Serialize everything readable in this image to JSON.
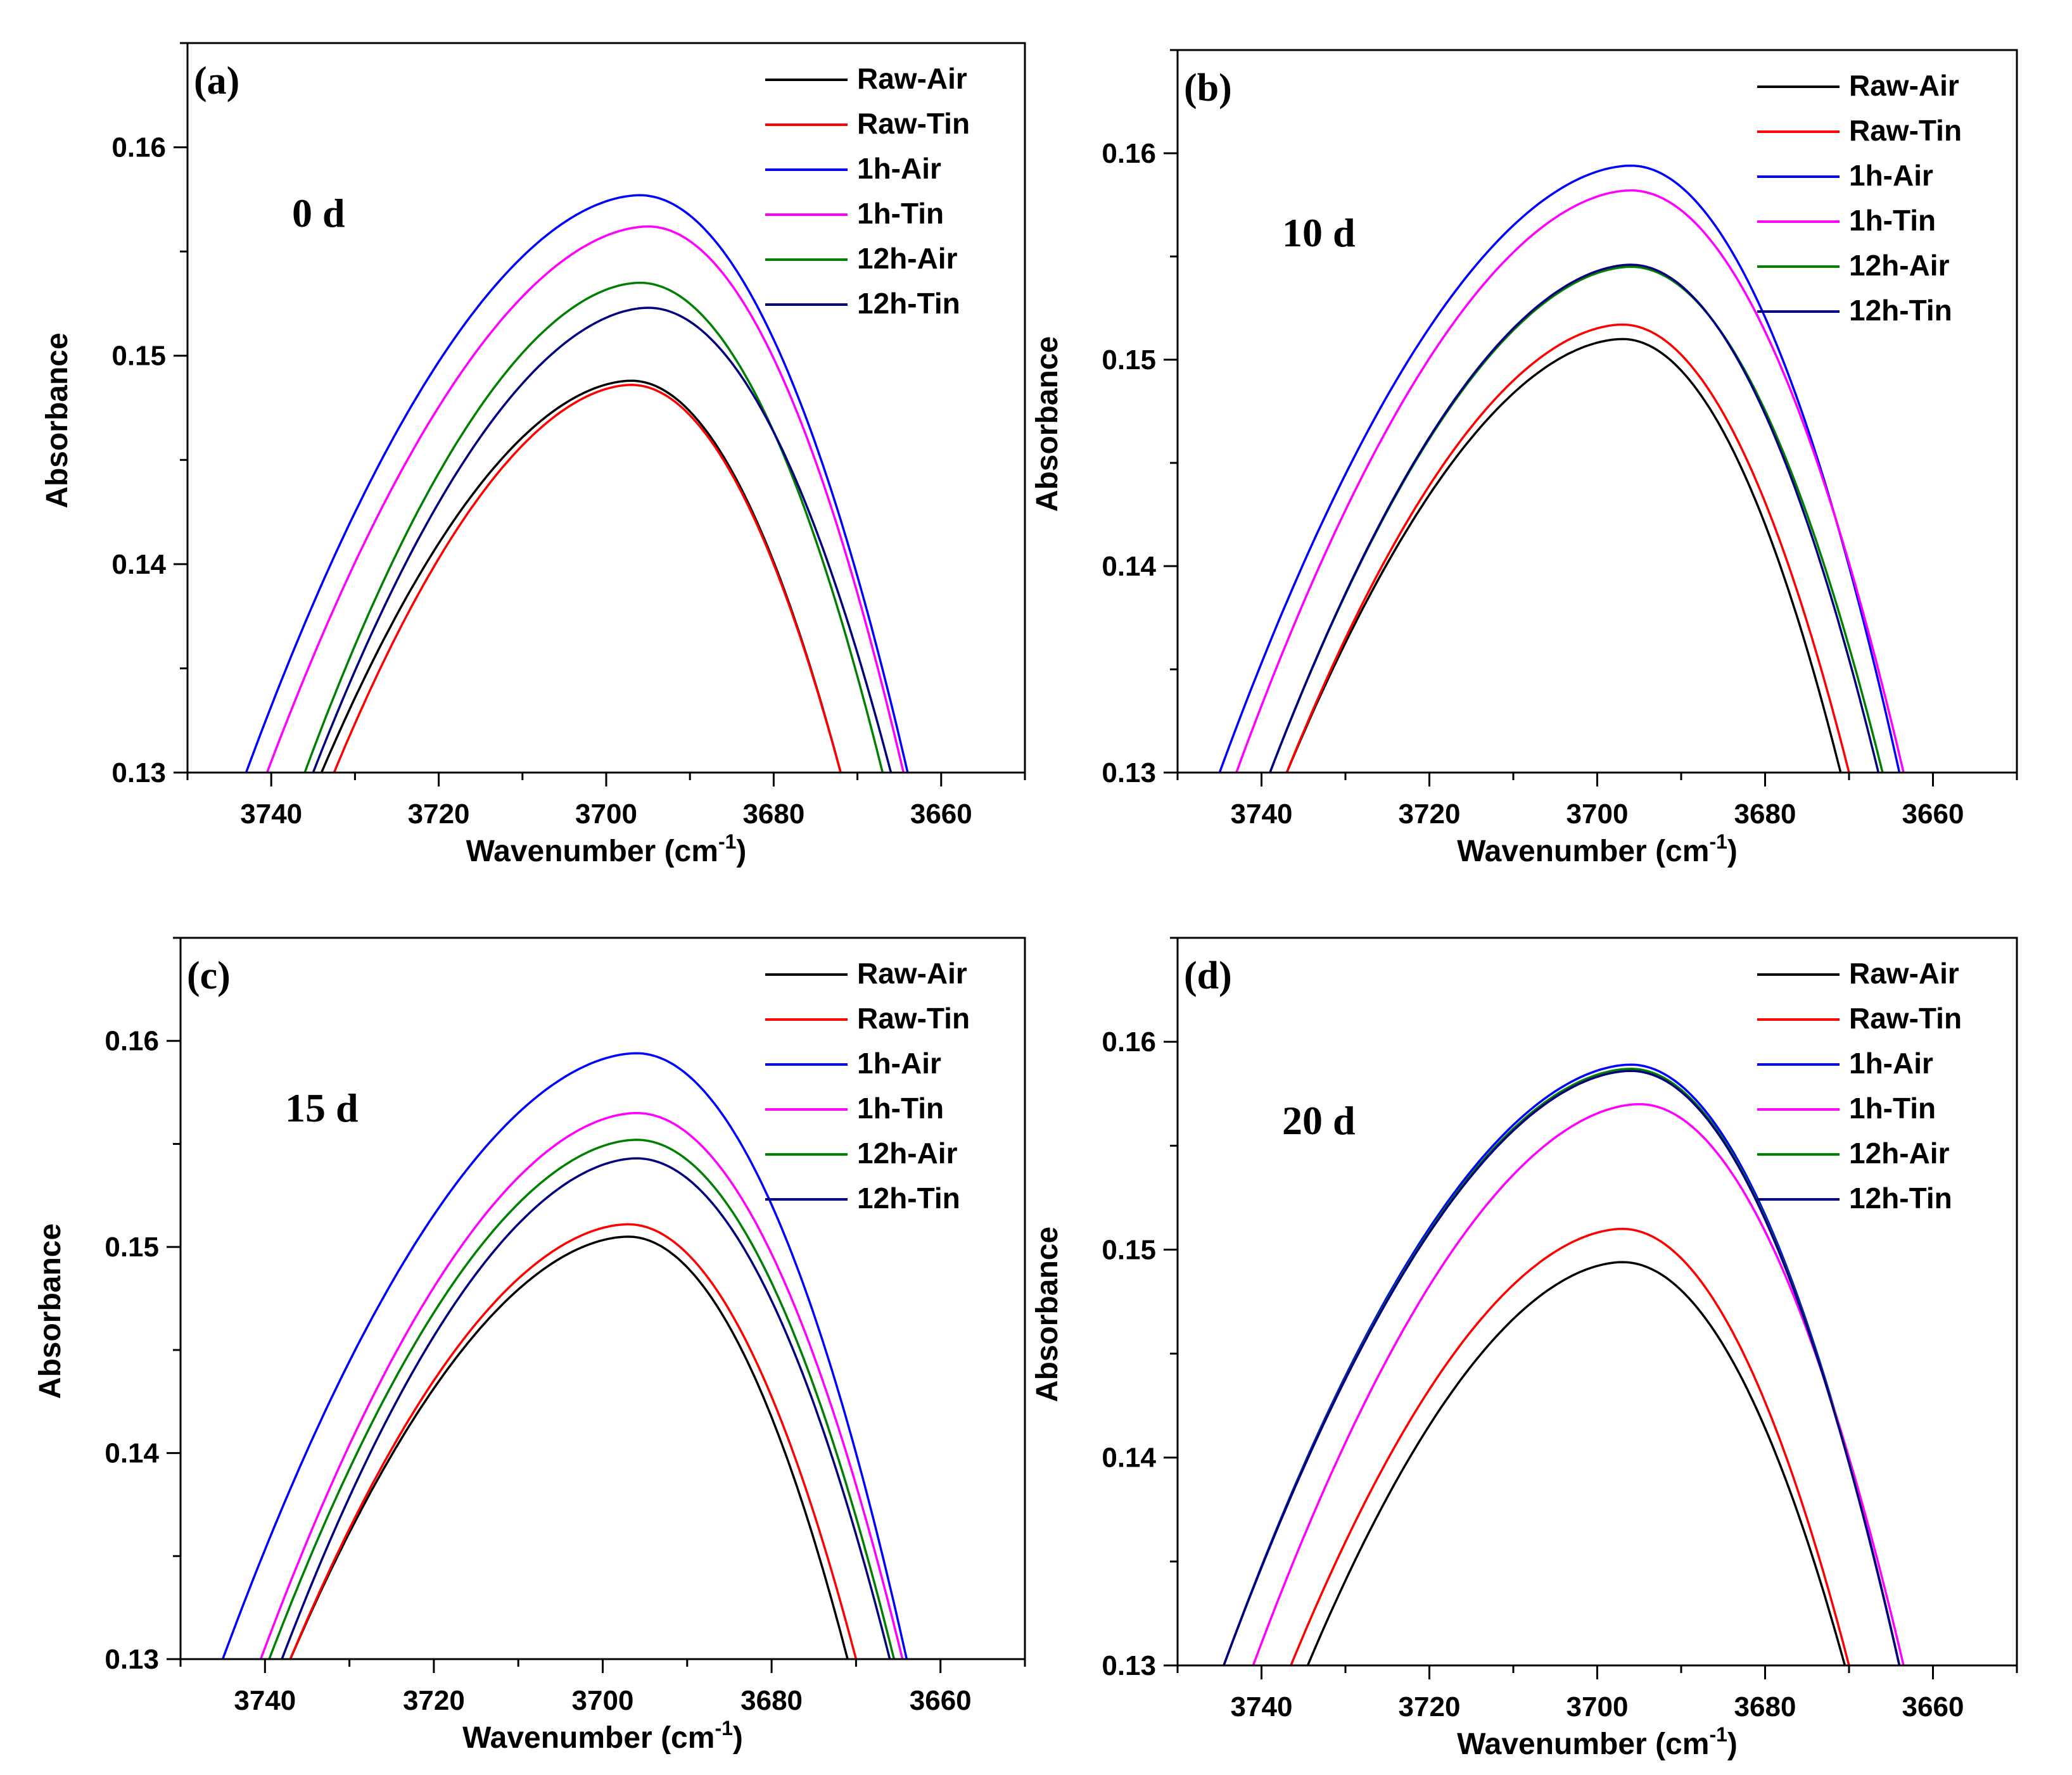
{
  "chart_data": [
    {
      "type": "line",
      "panel_label": "(a)",
      "annotation": "0 d",
      "xlabel": "Wavenumber (cm",
      "xlabel_sup": "-1",
      "xlabel_close": ")",
      "ylabel": "Absorbance",
      "xlim": [
        3750,
        3650
      ],
      "ylim": [
        0.13,
        0.165
      ],
      "xticks": [
        3740,
        3720,
        3700,
        3680,
        3660
      ],
      "yticks": [
        0.13,
        0.14,
        0.15,
        0.16
      ],
      "yticklabels": [
        "0.13",
        "0.14",
        "0.15",
        "0.16"
      ],
      "legend_position": "top-right",
      "series": [
        {
          "name": "Raw-Air",
          "color": "#000000",
          "peak_x": 3697,
          "peak_y": 0.1488,
          "x_left": 3734,
          "x_right": 3672
        },
        {
          "name": "Raw-Tin",
          "color": "#ff0000",
          "peak_x": 3697,
          "peak_y": 0.1486,
          "x_left": 3732.5,
          "x_right": 3672
        },
        {
          "name": "1h-Air",
          "color": "#0000ff",
          "peak_x": 3696,
          "peak_y": 0.1577,
          "x_left": 3743,
          "x_right": 3664
        },
        {
          "name": "1h-Tin",
          "color": "#ff00ff",
          "peak_x": 3695,
          "peak_y": 0.1562,
          "x_left": 3740.5,
          "x_right": 3664.5
        },
        {
          "name": "12h-Air",
          "color": "#008000",
          "peak_x": 3696,
          "peak_y": 0.1535,
          "x_left": 3736,
          "x_right": 3667
        },
        {
          "name": "12h-Tin",
          "color": "#000080",
          "peak_x": 3695,
          "peak_y": 0.1523,
          "x_left": 3735,
          "x_right": 3666
        }
      ]
    },
    {
      "type": "line",
      "panel_label": "(b)",
      "annotation": "10 d",
      "xlabel": "Wavenumber (cm",
      "xlabel_sup": "-1",
      "xlabel_close": ")",
      "ylabel": "Absorbance",
      "xlim": [
        3750,
        3650
      ],
      "ylim": [
        0.13,
        0.165
      ],
      "xticks": [
        3740,
        3720,
        3700,
        3680,
        3660
      ],
      "yticks": [
        0.13,
        0.14,
        0.15,
        0.16
      ],
      "yticklabels": [
        "0.13",
        "0.14",
        "0.15",
        "0.16"
      ],
      "legend_position": "top-right",
      "series": [
        {
          "name": "Raw-Air",
          "color": "#000000",
          "peak_x": 3697,
          "peak_y": 0.151,
          "x_left": 3737,
          "x_right": 3671
        },
        {
          "name": "Raw-Tin",
          "color": "#ff0000",
          "peak_x": 3697,
          "peak_y": 0.1517,
          "x_left": 3737,
          "x_right": 3670
        },
        {
          "name": "1h-Air",
          "color": "#0000ff",
          "peak_x": 3696,
          "peak_y": 0.1594,
          "x_left": 3745,
          "x_right": 3664
        },
        {
          "name": "1h-Tin",
          "color": "#ff00ff",
          "peak_x": 3696,
          "peak_y": 0.1582,
          "x_left": 3743,
          "x_right": 3663.5
        },
        {
          "name": "12h-Air",
          "color": "#008000",
          "peak_x": 3696,
          "peak_y": 0.1545,
          "x_left": 3739,
          "x_right": 3666
        },
        {
          "name": "12h-Tin",
          "color": "#000080",
          "peak_x": 3696,
          "peak_y": 0.1546,
          "x_left": 3739,
          "x_right": 3666.5
        }
      ]
    },
    {
      "type": "line",
      "panel_label": "(c)",
      "annotation": "15 d",
      "xlabel": "Wavenumber (cm",
      "xlabel_sup": "-1",
      "xlabel_close": ")",
      "ylabel": "Absorbance",
      "xlim": [
        3750,
        3650
      ],
      "ylim": [
        0.13,
        0.165
      ],
      "xticks": [
        3740,
        3720,
        3700,
        3680,
        3660
      ],
      "yticks": [
        0.13,
        0.14,
        0.15,
        0.16
      ],
      "yticklabels": [
        "0.13",
        "0.14",
        "0.15",
        "0.16"
      ],
      "legend_position": "top-right",
      "series": [
        {
          "name": "Raw-Air",
          "color": "#000000",
          "peak_x": 3697,
          "peak_y": 0.1505,
          "x_left": 3737,
          "x_right": 3671
        },
        {
          "name": "Raw-Tin",
          "color": "#ff0000",
          "peak_x": 3697,
          "peak_y": 0.1511,
          "x_left": 3737,
          "x_right": 3670
        },
        {
          "name": "1h-Air",
          "color": "#0000ff",
          "peak_x": 3696,
          "peak_y": 0.1594,
          "x_left": 3745,
          "x_right": 3664
        },
        {
          "name": "1h-Tin",
          "color": "#ff00ff",
          "peak_x": 3696,
          "peak_y": 0.1565,
          "x_left": 3740.5,
          "x_right": 3664.5
        },
        {
          "name": "12h-Air",
          "color": "#008000",
          "peak_x": 3696,
          "peak_y": 0.1552,
          "x_left": 3739.5,
          "x_right": 3665.5
        },
        {
          "name": "12h-Tin",
          "color": "#000080",
          "peak_x": 3696,
          "peak_y": 0.1543,
          "x_left": 3738,
          "x_right": 3666
        }
      ]
    },
    {
      "type": "line",
      "panel_label": "(d)",
      "annotation": "20 d",
      "xlabel": "Wavenumber (cm",
      "xlabel_sup": "-1",
      "xlabel_close": ")",
      "ylabel": "Absorbance",
      "xlim": [
        3750,
        3650
      ],
      "ylim": [
        0.13,
        0.165
      ],
      "xticks": [
        3740,
        3720,
        3700,
        3680,
        3660
      ],
      "yticks": [
        0.13,
        0.14,
        0.15,
        0.16
      ],
      "yticklabels": [
        "0.13",
        "0.14",
        "0.15",
        "0.16"
      ],
      "legend_position": "top-right",
      "series": [
        {
          "name": "Raw-Air",
          "color": "#000000",
          "peak_x": 3697,
          "peak_y": 0.1494,
          "x_left": 3734.5,
          "x_right": 3670.5
        },
        {
          "name": "Raw-Tin",
          "color": "#ff0000",
          "peak_x": 3697,
          "peak_y": 0.151,
          "x_left": 3736.5,
          "x_right": 3670
        },
        {
          "name": "1h-Air",
          "color": "#0000ff",
          "peak_x": 3696,
          "peak_y": 0.1589,
          "x_left": 3744.5,
          "x_right": 3664
        },
        {
          "name": "1h-Tin",
          "color": "#ff00ff",
          "peak_x": 3695,
          "peak_y": 0.157,
          "x_left": 3741,
          "x_right": 3663.5
        },
        {
          "name": "12h-Air",
          "color": "#008000",
          "peak_x": 3696,
          "peak_y": 0.1587,
          "x_left": 3744.5,
          "x_right": 3664
        },
        {
          "name": "12h-Tin",
          "color": "#000080",
          "peak_x": 3696,
          "peak_y": 0.1586,
          "x_left": 3744.5,
          "x_right": 3664
        }
      ]
    }
  ]
}
